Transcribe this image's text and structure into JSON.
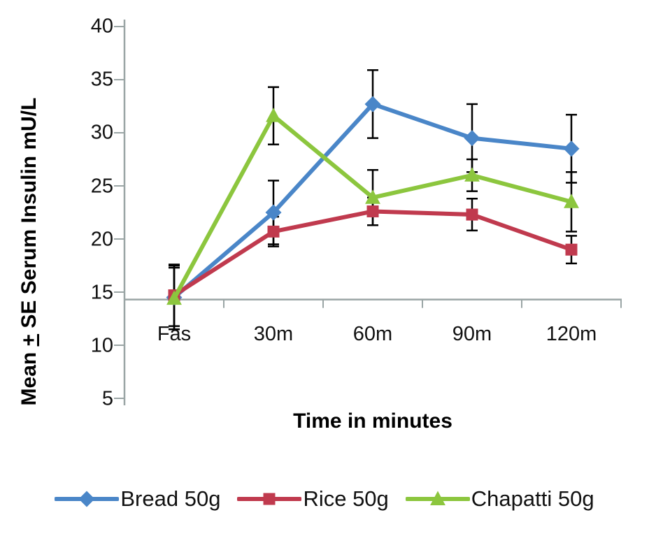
{
  "chart_data": {
    "type": "line",
    "title": "",
    "xlabel": "Time in minutes",
    "ylabel": "Mean + SE Serum Insulin mU/L",
    "ylabel_parts": {
      "prefix": "Mean ",
      "plusminus": "+",
      "suffix": " SE Serum Insulin mU/L"
    },
    "categories": [
      "Fas",
      "30m",
      "60m",
      "90m",
      "120m"
    ],
    "y_ticks": [
      40,
      35,
      30,
      25,
      20,
      15,
      10,
      5
    ],
    "ylim": [
      5,
      40
    ],
    "x_axis_crosses_at": 14.3,
    "grid": false,
    "legend_position": "bottom",
    "axis_color": "#9aa5a5",
    "error_bar_color": "#000000",
    "series": [
      {
        "name": "Bread 50g",
        "marker": "diamond",
        "color": "#4a86c8",
        "values": [
          14.5,
          22.5,
          32.7,
          29.5,
          28.5
        ],
        "errors": [
          3.0,
          3.0,
          3.2,
          3.2,
          3.2
        ]
      },
      {
        "name": "Rice 50g",
        "marker": "square",
        "color": "#c03a4e",
        "values": [
          14.7,
          20.7,
          22.6,
          22.3,
          19.0
        ],
        "errors": [
          2.9,
          1.4,
          1.3,
          1.5,
          1.3
        ]
      },
      {
        "name": "Chapatti 50g",
        "marker": "triangle",
        "color": "#8cc63e",
        "values": [
          14.4,
          31.6,
          23.9,
          26.0,
          23.5
        ],
        "errors": [
          2.9,
          2.7,
          2.6,
          1.5,
          2.8
        ]
      }
    ]
  }
}
